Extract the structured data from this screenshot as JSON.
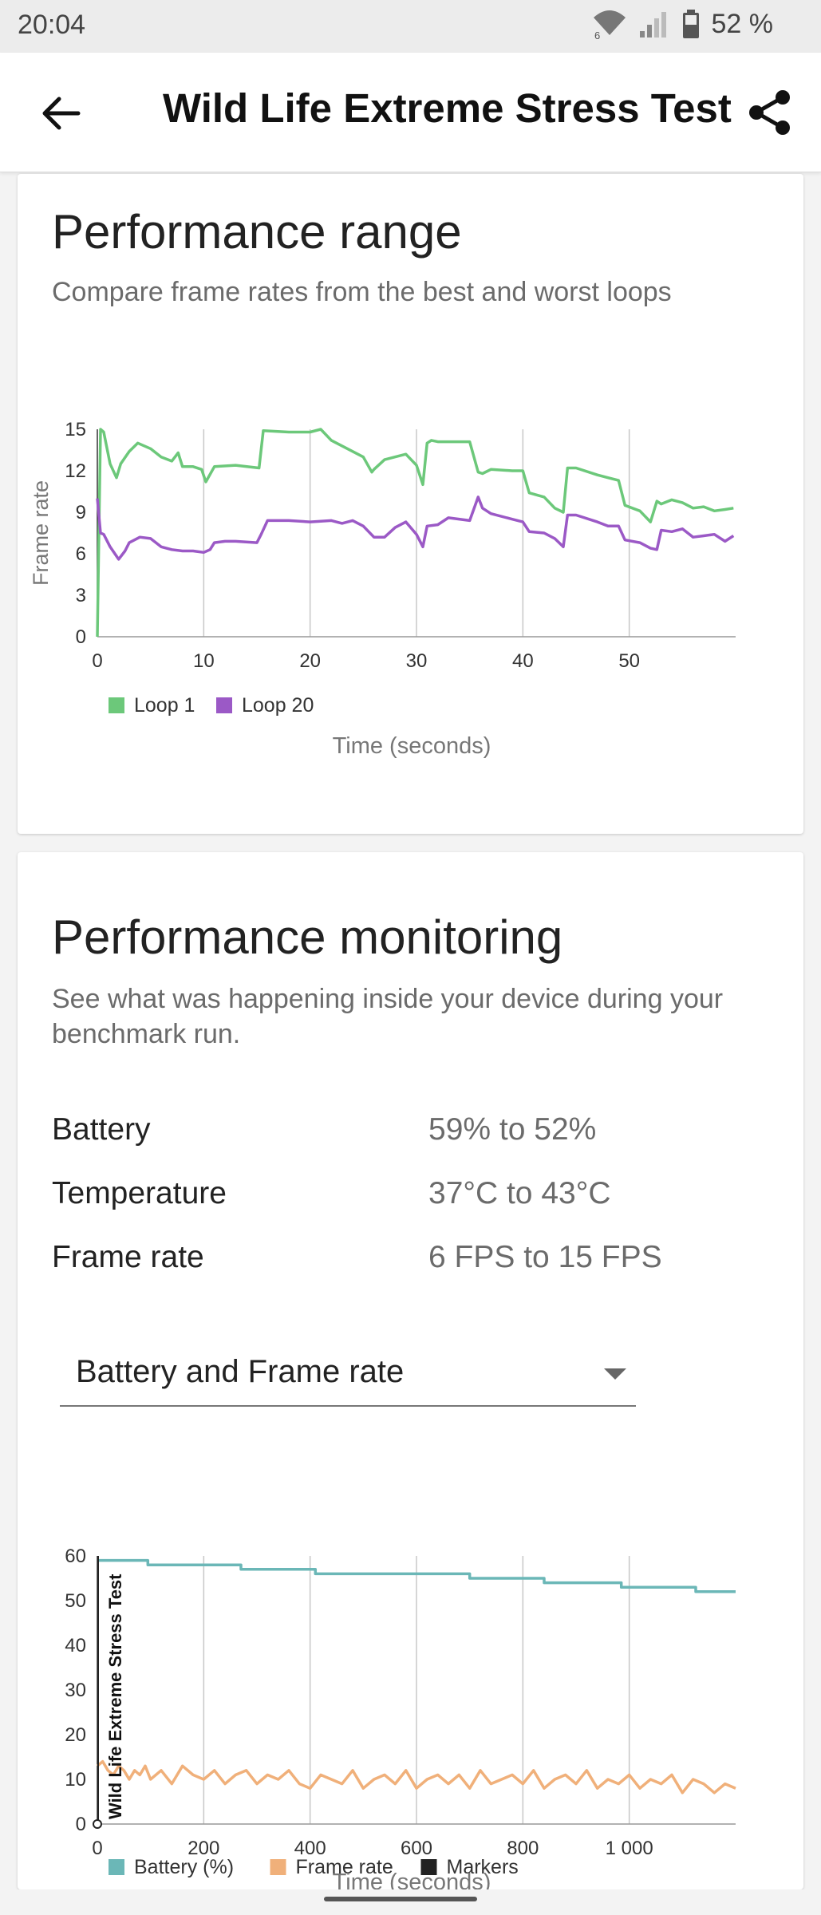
{
  "status_bar": {
    "time": "20:04",
    "battery_pct": "52 %",
    "wifi_badge": "6",
    "icons": [
      "wifi-icon",
      "signal-icon",
      "battery-icon"
    ]
  },
  "app_bar": {
    "title": "Wild Life Extreme Stress Test",
    "back_icon": "arrow-left-icon",
    "share_icon": "share-icon"
  },
  "performance_range": {
    "title": "Performance range",
    "subtitle": "Compare frame rates from the best and worst loops"
  },
  "performance_monitoring": {
    "title": "Performance monitoring",
    "subtitle": "See what was happening inside your device during your benchmark run.",
    "metrics": [
      {
        "label": "Battery",
        "value": "59% to 52%"
      },
      {
        "label": "Temperature",
        "value": "37°C to 43°C"
      },
      {
        "label": "Frame rate",
        "value": "6 FPS to 15 FPS"
      }
    ],
    "dropdown": {
      "selected": "Battery and Frame rate",
      "icon": "dropdown-arrow-icon"
    }
  },
  "colors": {
    "loop1": "#6cc87a",
    "loop20": "#9b59c6",
    "battery": "#6bb7b7",
    "frame_rate": "#f0b07a",
    "markers": "#222222"
  },
  "chart_data": [
    {
      "type": "line",
      "xlabel": "Time (seconds)",
      "ylabel": "Frame rate",
      "xlim": [
        0,
        60
      ],
      "ylim": [
        0,
        15
      ],
      "xticks": [
        "0",
        "10",
        "20",
        "30",
        "40",
        "50"
      ],
      "yticks": [
        "0",
        "3",
        "6",
        "9",
        "12",
        "15"
      ],
      "grid": "vertical",
      "legend": "bottom-left",
      "series": [
        {
          "name": "Loop 1",
          "color": "#6cc87a",
          "x": [
            0,
            0.3,
            0.6,
            1.2,
            1.8,
            2.2,
            3,
            3.8,
            5,
            6,
            7,
            7.6,
            8,
            9,
            9.8,
            10.2,
            11,
            13,
            15.2,
            15.6,
            18,
            20,
            21,
            22,
            25,
            25.8,
            26,
            27,
            29,
            30,
            30.6,
            31,
            31.4,
            32,
            35,
            35.8,
            36.2,
            37,
            39,
            40,
            40.6,
            42,
            43,
            43.8,
            44.2,
            45,
            47,
            49,
            49.6,
            51,
            52,
            52.6,
            53,
            54,
            55,
            56,
            57,
            58,
            59,
            59.8
          ],
          "y": [
            0,
            15,
            14.8,
            12.5,
            11.5,
            12.5,
            13.4,
            14,
            13.6,
            13,
            12.7,
            13.3,
            12.3,
            12.3,
            12.1,
            11.2,
            12.3,
            12.4,
            12.2,
            14.9,
            14.8,
            14.8,
            15,
            14.2,
            13,
            11.9,
            12.1,
            12.8,
            13.2,
            12.4,
            11,
            14,
            14.2,
            14.1,
            14.1,
            11.9,
            11.8,
            12.1,
            12,
            12,
            10.4,
            10.1,
            9.3,
            9,
            12.2,
            12.2,
            11.7,
            11.3,
            9.5,
            9.1,
            8.3,
            9.8,
            9.6,
            9.9,
            9.7,
            9.3,
            9.4,
            9.1,
            9.2,
            9.3
          ]
        },
        {
          "name": "Loop 20",
          "color": "#9b59c6",
          "x": [
            0,
            0.3,
            0.6,
            1.2,
            2,
            2.6,
            3,
            4,
            5,
            6,
            7,
            8,
            9,
            10,
            10.6,
            11,
            12,
            13,
            15,
            15.4,
            16,
            18,
            20,
            22,
            23,
            24,
            25,
            26,
            27,
            28,
            29,
            30,
            30.6,
            31,
            32,
            33,
            35,
            35.8,
            36.2,
            37,
            39,
            40,
            40.6,
            42,
            43,
            43.8,
            44.2,
            45,
            47,
            48,
            49,
            49.6,
            51,
            52,
            52.6,
            53,
            54,
            55,
            56,
            57,
            58,
            59,
            59.8
          ],
          "y": [
            10,
            7.5,
            7.4,
            6.5,
            5.6,
            6.2,
            6.8,
            7.2,
            7.1,
            6.5,
            6.3,
            6.2,
            6.2,
            6.1,
            6.3,
            6.8,
            6.9,
            6.9,
            6.8,
            7.4,
            8.4,
            8.4,
            8.3,
            8.4,
            8.2,
            8.4,
            8,
            7.2,
            7.2,
            7.9,
            8.3,
            7.4,
            6.5,
            8,
            8.1,
            8.6,
            8.4,
            10.1,
            9.3,
            8.9,
            8.5,
            8.3,
            7.6,
            7.5,
            7.1,
            6.5,
            8.8,
            8.8,
            8.3,
            8,
            8,
            7,
            6.8,
            6.4,
            6.3,
            7.7,
            7.6,
            7.8,
            7.2,
            7.3,
            7.4,
            6.9,
            7.3
          ]
        }
      ]
    },
    {
      "type": "line",
      "xlabel": "Time (seconds)",
      "ylabel": "",
      "xlim": [
        0,
        1200
      ],
      "ylim": [
        0,
        60
      ],
      "xticks": [
        "0",
        "200",
        "400",
        "600",
        "800",
        "1 000"
      ],
      "yticks": [
        "0",
        "10",
        "20",
        "30",
        "40",
        "50",
        "60"
      ],
      "grid": "vertical",
      "legend": "bottom-left",
      "marker_label": "Wild Life Extreme Stress Test",
      "series": [
        {
          "name": "Battery (%)",
          "color": "#6bb7b7",
          "x": [
            0,
            95,
            95,
            270,
            270,
            410,
            410,
            700,
            700,
            840,
            840,
            985,
            985,
            1125,
            1125,
            1200
          ],
          "y": [
            59,
            59,
            58,
            58,
            57,
            57,
            56,
            56,
            55,
            55,
            54,
            54,
            53,
            53,
            52,
            52
          ]
        },
        {
          "name": "Frame rate",
          "color": "#f0b07a",
          "x": [
            0,
            10,
            20,
            30,
            40,
            50,
            60,
            70,
            80,
            90,
            100,
            120,
            140,
            160,
            180,
            200,
            220,
            240,
            260,
            280,
            300,
            320,
            340,
            360,
            380,
            400,
            420,
            440,
            460,
            480,
            500,
            520,
            540,
            560,
            580,
            600,
            620,
            640,
            660,
            680,
            700,
            720,
            740,
            760,
            780,
            800,
            820,
            840,
            860,
            880,
            900,
            920,
            940,
            960,
            980,
            1000,
            1020,
            1040,
            1060,
            1080,
            1100,
            1120,
            1140,
            1160,
            1180,
            1200
          ],
          "y": [
            13,
            14,
            12,
            11,
            13,
            12,
            10,
            12,
            11,
            13,
            10,
            12,
            9,
            13,
            11,
            10,
            12,
            9,
            11,
            12,
            9,
            11,
            10,
            12,
            9,
            8,
            11,
            10,
            9,
            12,
            8,
            10,
            11,
            9,
            12,
            8,
            10,
            11,
            9,
            11,
            8,
            12,
            9,
            10,
            11,
            9,
            12,
            8,
            10,
            11,
            9,
            12,
            8,
            10,
            9,
            11,
            8,
            10,
            9,
            11,
            7,
            10,
            9,
            7,
            9,
            8
          ]
        },
        {
          "name": "Markers",
          "color": "#222222",
          "x": [
            0,
            0
          ],
          "y": [
            0,
            60
          ]
        }
      ]
    }
  ]
}
